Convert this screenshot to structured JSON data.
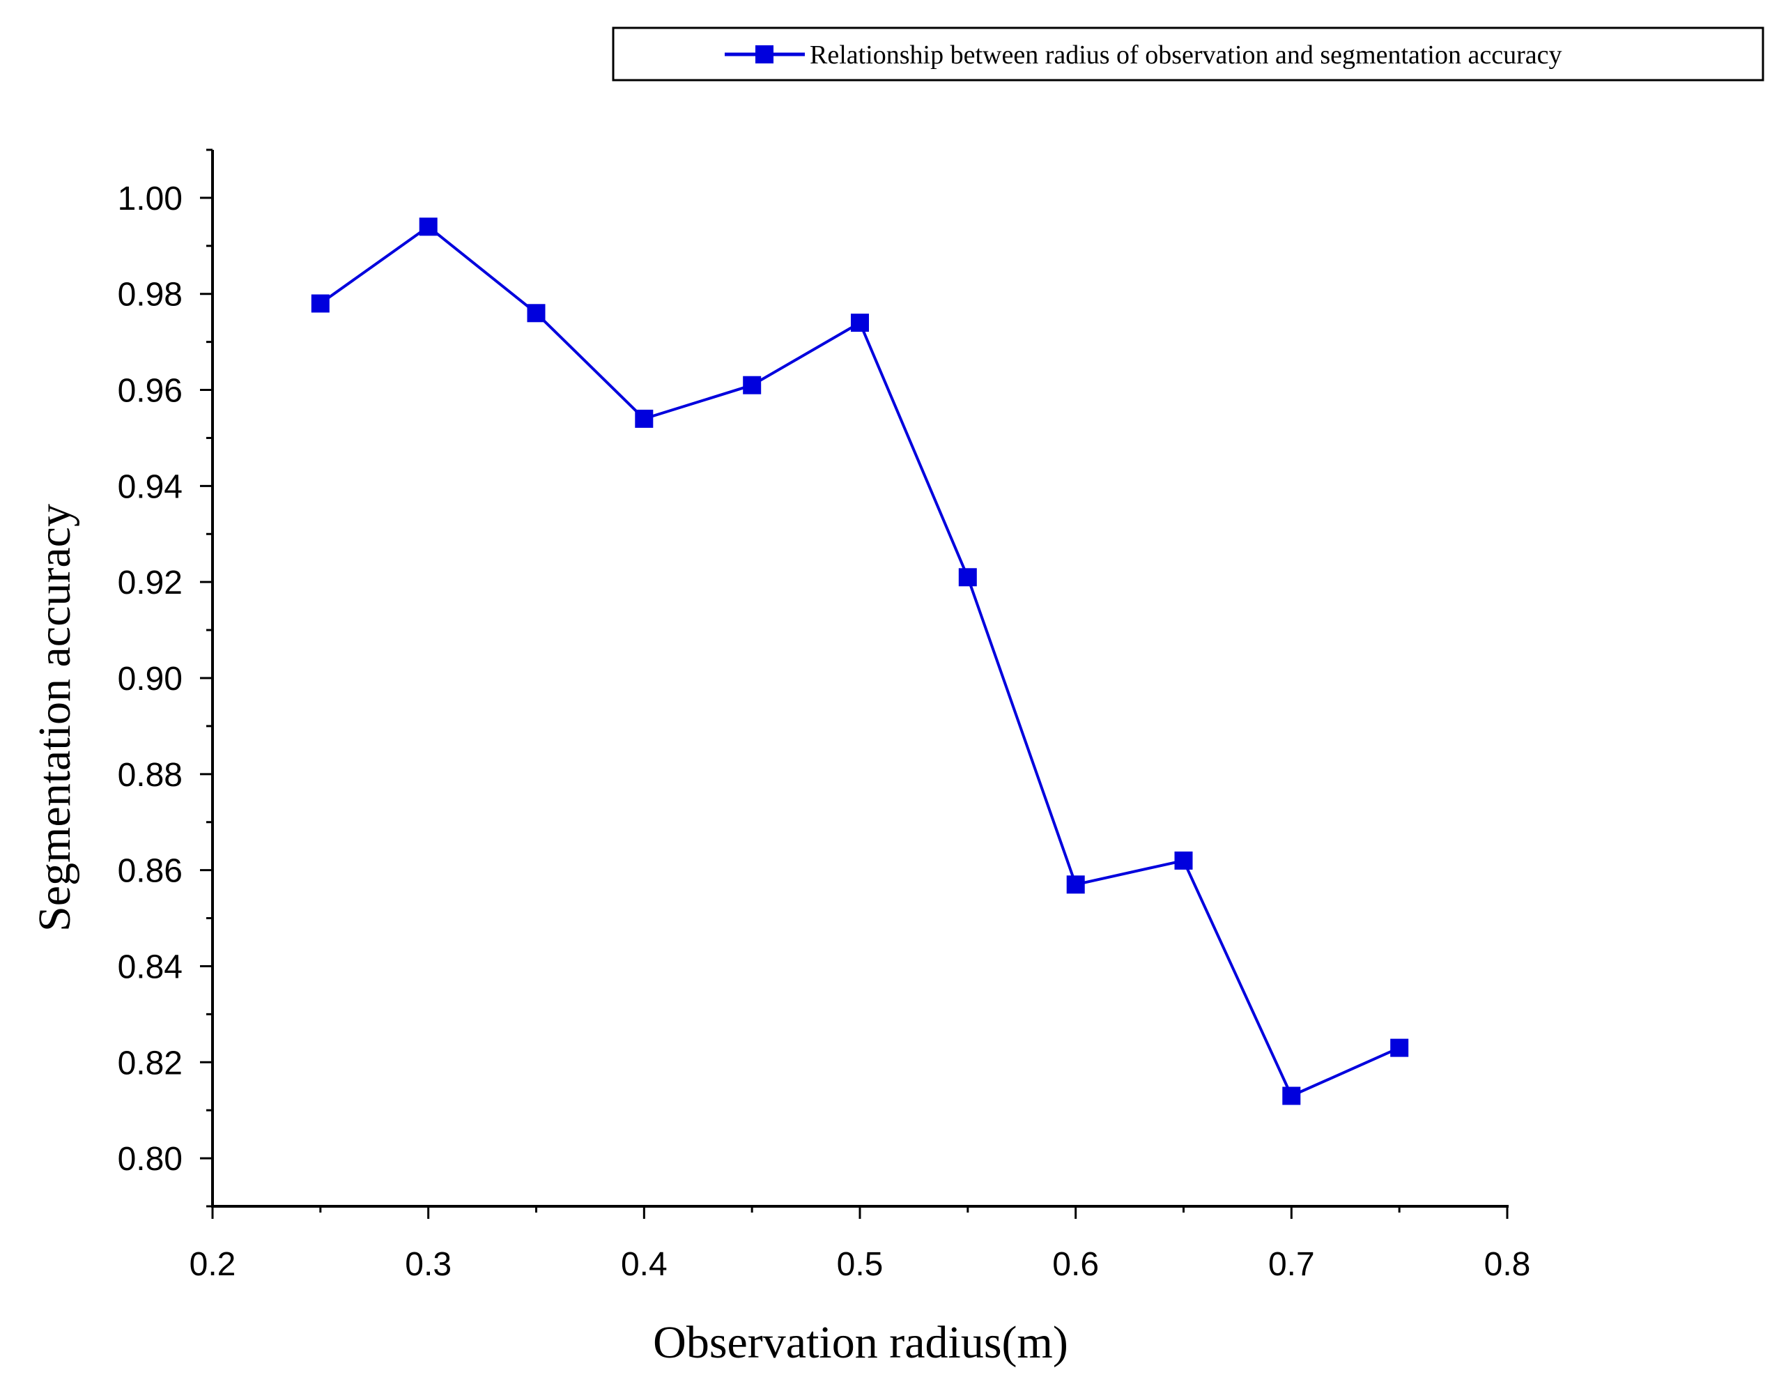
{
  "chart_data": {
    "type": "line",
    "title": "",
    "xlabel": "Observation radius(m)",
    "ylabel": "Segmentation accuracy",
    "xlim": [
      0.2,
      0.8
    ],
    "ylim": [
      0.79,
      1.01
    ],
    "x_ticks": [
      "0.2",
      "0.3",
      "0.4",
      "0.5",
      "0.6",
      "0.7",
      "0.8"
    ],
    "y_ticks": [
      "0.80",
      "0.82",
      "0.84",
      "0.86",
      "0.88",
      "0.90",
      "0.92",
      "0.94",
      "0.96",
      "0.98",
      "1.00"
    ],
    "grid": false,
    "legend_position": "top-right",
    "series": [
      {
        "name": "Relationship between radius of observation and segmentation accuracy",
        "color": "#0000dd",
        "marker": "square",
        "x": [
          0.25,
          0.3,
          0.35,
          0.4,
          0.45,
          0.5,
          0.55,
          0.6,
          0.65,
          0.7,
          0.75
        ],
        "y": [
          0.978,
          0.994,
          0.976,
          0.954,
          0.961,
          0.974,
          0.921,
          0.857,
          0.862,
          0.813,
          0.823
        ]
      }
    ]
  }
}
